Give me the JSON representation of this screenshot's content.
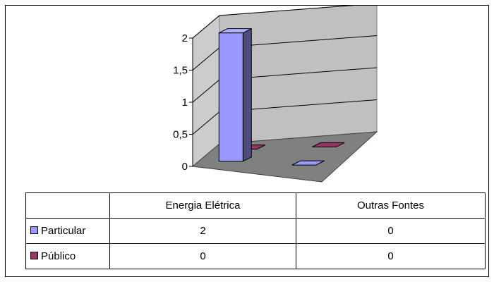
{
  "chart_data": {
    "type": "bar",
    "categories": [
      "Energia Elétrica",
      "Outras Fontes"
    ],
    "series": [
      {
        "name": "Particular",
        "values": [
          2,
          0
        ],
        "color": "#9999ff"
      },
      {
        "name": "Público",
        "values": [
          0,
          0
        ],
        "color": "#993366"
      }
    ],
    "yticks": [
      "0",
      "0,5",
      "1",
      "1,5",
      "2"
    ],
    "ylim": [
      0,
      2
    ],
    "grid": true,
    "legend": "data table rows"
  }
}
